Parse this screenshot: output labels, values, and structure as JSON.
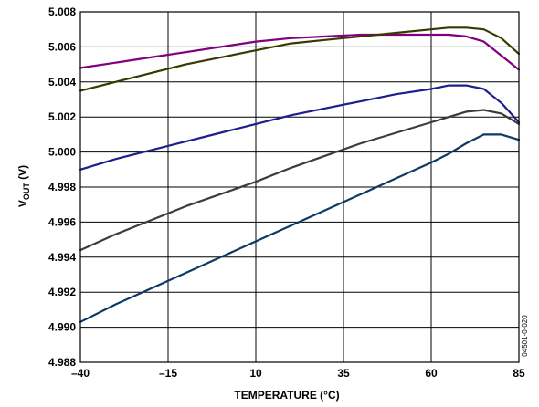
{
  "chart_data": {
    "type": "line",
    "title": "",
    "xlabel": "TEMPERATURE (°C)",
    "ylabel_main": "V",
    "ylabel_sub": "OUT",
    "ylabel_unit": " (V)",
    "xlim": [
      -40,
      85
    ],
    "ylim": [
      4.988,
      5.008
    ],
    "grid": true,
    "x_ticks": [
      -40,
      -15,
      10,
      35,
      60,
      85
    ],
    "x_tick_labels": [
      "–40",
      "–15",
      "10",
      "35",
      "60",
      "85"
    ],
    "y_ticks": [
      4.988,
      4.99,
      4.992,
      4.994,
      4.996,
      4.998,
      5.0,
      5.002,
      5.004,
      5.006,
      5.008
    ],
    "y_tick_labels": [
      "4.988",
      "4.990",
      "4.992",
      "4.994",
      "4.996",
      "4.998",
      "5.000",
      "5.002",
      "5.004",
      "5.006",
      "5.008"
    ],
    "series": [
      {
        "color": "#800080",
        "x": [
          -40,
          -30,
          -20,
          -10,
          0,
          10,
          20,
          30,
          40,
          50,
          60,
          65,
          70,
          75,
          80,
          85
        ],
        "y": [
          5.0048,
          5.0051,
          5.0054,
          5.0057,
          5.006,
          5.0063,
          5.0065,
          5.0066,
          5.0067,
          5.0067,
          5.0067,
          5.0067,
          5.0066,
          5.0063,
          5.0055,
          5.0047
        ]
      },
      {
        "color": "#3A3A00",
        "x": [
          -40,
          -30,
          -20,
          -10,
          0,
          10,
          20,
          30,
          40,
          50,
          60,
          65,
          70,
          75,
          80,
          85
        ],
        "y": [
          5.0035,
          5.004,
          5.0045,
          5.005,
          5.0054,
          5.0058,
          5.0062,
          5.0064,
          5.0066,
          5.0068,
          5.007,
          5.0071,
          5.0071,
          5.007,
          5.0065,
          5.0056
        ]
      },
      {
        "color": "#1E1E8C",
        "x": [
          -40,
          -30,
          -20,
          -10,
          0,
          10,
          20,
          30,
          40,
          50,
          60,
          65,
          70,
          75,
          80,
          85
        ],
        "y": [
          4.999,
          4.9996,
          5.0001,
          5.0006,
          5.0011,
          5.0016,
          5.0021,
          5.0025,
          5.0029,
          5.0033,
          5.0036,
          5.0038,
          5.0038,
          5.0036,
          5.0028,
          5.0017
        ]
      },
      {
        "color": "#3C3C3C",
        "x": [
          -40,
          -30,
          -20,
          -10,
          0,
          10,
          20,
          30,
          40,
          50,
          60,
          65,
          70,
          75,
          80,
          85
        ],
        "y": [
          4.9944,
          4.9953,
          4.9961,
          4.9969,
          4.9976,
          4.9983,
          4.9991,
          4.9998,
          5.0005,
          5.0011,
          5.0017,
          5.002,
          5.0023,
          5.0024,
          5.0022,
          5.0016
        ]
      },
      {
        "color": "#0E3A66",
        "x": [
          -40,
          -30,
          -20,
          -10,
          0,
          10,
          20,
          30,
          40,
          50,
          60,
          65,
          70,
          75,
          80,
          85
        ],
        "y": [
          4.9903,
          4.9913,
          4.9922,
          4.9931,
          4.994,
          4.9949,
          4.9958,
          4.9967,
          4.9976,
          4.9985,
          4.9994,
          4.9999,
          5.0005,
          5.001,
          5.001,
          5.0007
        ]
      }
    ]
  },
  "figure_id": "04501-0-020"
}
